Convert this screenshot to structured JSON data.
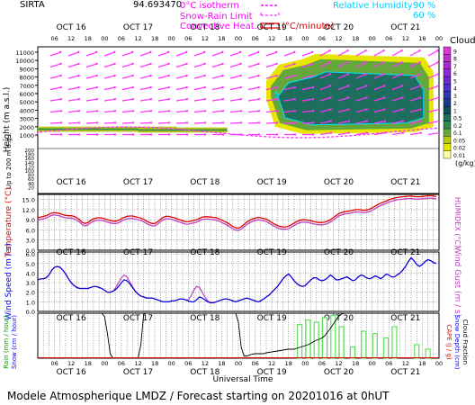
{
  "header": {
    "site": "SIRTA",
    "coord": "94.693470",
    "legend_isotherm": "0°C isotherm",
    "legend_snowrain": "Snow-Rain Limit",
    "legend_convective": "Convective Heat.",
    "legend_convective_unit": "(°C/minute)",
    "rh_label": "Relative Humidity",
    "rh_90": "90 %",
    "rh_60": "60 %"
  },
  "footer": "Modele Atmospherique LMDZ / Forecast starting on 20201016 at 0hUT",
  "time_axis": {
    "days": [
      "OCT 16",
      "OCT 17",
      "OCT 18",
      "OCT 19",
      "OCT 20",
      "OCT 21"
    ],
    "hours": [
      "06",
      "12",
      "18",
      "00"
    ],
    "xlabel": "Universal Time",
    "n_steps": 144
  },
  "chart_data": [
    {
      "type": "heatmap",
      "title": "Clouds",
      "ylabel": "Height (m a.s.l.)",
      "ylabel_low": "Up to 200 m a.g.l.",
      "yticks_upper": [
        1000,
        2000,
        3000,
        4000,
        5000,
        6000,
        7000,
        8000,
        9000,
        10000,
        11000
      ],
      "yticks_lower": [
        20,
        40,
        60,
        80,
        100,
        120,
        140,
        160,
        180,
        200
      ],
      "colorbar_label": "(g/kg)",
      "colorbar_levels": [
        "0.01",
        "0.02",
        "0.05",
        "0.1",
        "0.2",
        "0.5",
        "1",
        "2",
        "3",
        "4",
        "5",
        "6",
        "7",
        "8",
        "9"
      ],
      "colorbar_colors": [
        "#ffffa0",
        "#e6e600",
        "#b4c814",
        "#64a83c",
        "#2e8a52",
        "#1e6e5e",
        "#0e4e5a",
        "#1c3a8a",
        "#2c3ab4",
        "#4a30c8",
        "#6e2ad2",
        "#8c28d4",
        "#a828d0",
        "#c030c8",
        "#d838d8"
      ],
      "cloud_layers": [
        {
          "x": [
            0,
            5,
            10,
            15,
            20,
            25,
            30,
            35,
            40,
            45,
            50
          ],
          "base_m": 1500,
          "top_m": 1900,
          "level": "0.5"
        },
        {
          "x": [
            36,
            40,
            44,
            48,
            52,
            56,
            60,
            64,
            68
          ],
          "base_m": 1400,
          "top_m": 1800,
          "level": "0.2"
        },
        {
          "x": [
            82,
            86,
            90,
            94,
            98,
            102,
            106,
            110,
            114,
            118,
            122,
            126,
            130,
            134,
            138,
            142
          ],
          "base_m": 2000,
          "top_m": 10800,
          "level": "0.2"
        }
      ]
    },
    {
      "type": "line",
      "ylabel": "Temperature (°C)",
      "ylabel_right": "HUMIDEX (°C)",
      "yticks": [
        0.0,
        3.0,
        6.0,
        9.0,
        12.0,
        15.0
      ],
      "ylim": [
        0,
        16.5
      ],
      "series": [
        {
          "name": "Temperature",
          "color": "#e00000",
          "values": [
            9.5,
            9.8,
            10.0,
            10.2,
            10.6,
            11.0,
            11.1,
            11.0,
            10.8,
            10.5,
            10.3,
            10.2,
            10.2,
            10.0,
            9.6,
            9.0,
            8.2,
            7.9,
            8.2,
            8.8,
            9.3,
            9.5,
            9.6,
            9.5,
            9.3,
            9.0,
            8.8,
            8.6,
            8.6,
            8.8,
            9.3,
            9.7,
            10.0,
            10.1,
            10.1,
            9.9,
            9.7,
            9.5,
            9.1,
            8.6,
            8.2,
            7.9,
            7.9,
            8.4,
            9.1,
            9.7,
            10.0,
            10.0,
            9.8,
            9.6,
            9.3,
            9.0,
            8.7,
            8.4,
            8.4,
            8.6,
            8.8,
            9.0,
            9.4,
            9.8,
            9.9,
            9.9,
            9.8,
            9.7,
            9.6,
            9.3,
            8.9,
            8.5,
            8.1,
            7.6,
            7.0,
            6.6,
            6.5,
            6.9,
            7.6,
            8.3,
            8.8,
            9.2,
            9.5,
            9.7,
            9.6,
            9.4,
            9.2,
            8.7,
            8.2,
            7.7,
            7.3,
            7.0,
            6.9,
            6.9,
            7.1,
            7.5,
            8.0,
            8.5,
            8.8,
            9.0,
            9.0,
            8.9,
            8.7,
            8.5,
            8.3,
            8.2,
            8.2,
            8.3,
            8.6,
            9.0,
            9.6,
            10.2,
            10.8,
            11.1,
            11.4,
            11.5,
            11.6,
            11.8,
            12.0,
            12.0,
            11.9,
            11.8,
            11.9,
            12.1,
            12.5,
            13.0,
            13.5,
            13.9,
            14.2,
            14.5,
            14.9,
            15.2,
            15.4,
            15.6,
            15.7,
            15.8,
            15.9,
            16.0,
            16.0,
            15.9,
            15.8,
            15.8,
            15.9,
            16.0,
            16.1,
            16.1,
            16.0,
            15.9
          ]
        },
        {
          "name": "HUMIDEX",
          "color": "#c040c0",
          "values": [
            8.8,
            9.1,
            9.3,
            9.5,
            9.9,
            10.3,
            10.4,
            10.3,
            10.1,
            9.8,
            9.6,
            9.5,
            9.5,
            9.3,
            8.9,
            8.3,
            7.5,
            7.2,
            7.5,
            8.1,
            8.6,
            8.8,
            8.9,
            8.8,
            8.6,
            8.3,
            8.1,
            7.9,
            7.9,
            8.1,
            8.6,
            9.0,
            9.3,
            9.4,
            9.4,
            9.2,
            9.0,
            8.8,
            8.4,
            7.9,
            7.5,
            7.2,
            7.2,
            7.7,
            8.4,
            9.0,
            9.3,
            9.3,
            9.1,
            8.9,
            8.6,
            8.3,
            8.0,
            7.7,
            7.7,
            7.9,
            8.1,
            8.3,
            8.7,
            9.1,
            9.2,
            9.2,
            9.1,
            9.0,
            8.9,
            8.6,
            8.2,
            7.8,
            7.4,
            6.9,
            6.3,
            5.9,
            5.8,
            6.2,
            6.9,
            7.6,
            8.1,
            8.5,
            8.8,
            9.0,
            8.9,
            8.7,
            8.5,
            8.0,
            7.5,
            7.0,
            6.6,
            6.3,
            6.2,
            6.2,
            6.4,
            6.8,
            7.3,
            7.8,
            8.1,
            8.3,
            8.3,
            8.2,
            8.0,
            7.8,
            7.6,
            7.5,
            7.5,
            7.6,
            7.9,
            8.3,
            8.9,
            9.5,
            10.1,
            10.4,
            10.7,
            10.8,
            10.9,
            11.1,
            11.3,
            11.3,
            11.2,
            11.1,
            11.2,
            11.4,
            11.8,
            12.3,
            12.8,
            13.2,
            13.5,
            13.8,
            14.2,
            14.5,
            14.7,
            14.9,
            15.0,
            15.1,
            15.2,
            15.3,
            15.3,
            15.2,
            15.1,
            15.1,
            15.2,
            15.3,
            15.4,
            15.4,
            15.3,
            15.2
          ]
        }
      ]
    },
    {
      "type": "line",
      "ylabel": "Wind Speed (m / s)",
      "ylabel_right": "Wind Gust (m / s)",
      "yticks": [
        0.0,
        1.0,
        2.0,
        3.0,
        4.0,
        5.0,
        6.0
      ],
      "ylim": [
        0,
        6.2
      ],
      "series": [
        {
          "name": "Wind Speed",
          "color": "#0000dd",
          "values": [
            3.3,
            3.4,
            3.4,
            3.5,
            3.8,
            4.3,
            4.6,
            4.7,
            4.6,
            4.3,
            3.9,
            3.4,
            3.0,
            2.7,
            2.5,
            2.4,
            2.4,
            2.4,
            2.4,
            2.5,
            2.6,
            2.6,
            2.5,
            2.4,
            2.2,
            2.0,
            2.0,
            2.1,
            2.3,
            2.6,
            3.0,
            3.3,
            3.2,
            2.9,
            2.5,
            2.1,
            1.8,
            1.6,
            1.5,
            1.4,
            1.4,
            1.4,
            1.3,
            1.2,
            1.1,
            1.0,
            1.0,
            1.0,
            1.1,
            1.1,
            1.2,
            1.3,
            1.3,
            1.2,
            1.1,
            1.0,
            1.0,
            1.2,
            1.5,
            1.4,
            1.2,
            1.0,
            0.9,
            0.9,
            1.0,
            1.1,
            1.2,
            1.3,
            1.3,
            1.2,
            1.1,
            1.0,
            1.1,
            1.2,
            1.3,
            1.4,
            1.3,
            1.2,
            1.1,
            1.0,
            1.1,
            1.3,
            1.5,
            1.7,
            2.0,
            2.3,
            2.6,
            3.0,
            3.4,
            3.7,
            3.9,
            3.6,
            3.2,
            2.9,
            2.7,
            2.6,
            2.7,
            3.0,
            3.3,
            3.5,
            3.5,
            3.3,
            3.2,
            3.3,
            3.5,
            3.8,
            3.6,
            3.3,
            3.3,
            3.4,
            3.5,
            3.6,
            3.4,
            3.2,
            3.3,
            3.6,
            3.8,
            3.7,
            3.5,
            3.4,
            3.5,
            3.7,
            3.6,
            3.4,
            3.6,
            3.9,
            3.8,
            3.6,
            3.6,
            3.8,
            4.0,
            4.3,
            4.7,
            5.2,
            5.6,
            5.3,
            4.9,
            4.7,
            4.9,
            5.2,
            5.4,
            5.3,
            5.1,
            5.0
          ]
        },
        {
          "name": "Wind Gust",
          "color": "#c040c0",
          "values": [
            3.3,
            3.4,
            3.4,
            3.5,
            3.8,
            4.3,
            4.6,
            4.7,
            4.6,
            4.3,
            3.9,
            3.4,
            3.0,
            2.7,
            2.5,
            2.4,
            2.4,
            2.4,
            2.4,
            2.5,
            2.6,
            2.6,
            2.5,
            2.4,
            2.2,
            2.0,
            2.0,
            2.1,
            2.5,
            3.0,
            3.5,
            3.8,
            3.6,
            3.1,
            2.6,
            2.1,
            1.8,
            1.6,
            1.5,
            1.4,
            1.4,
            1.4,
            1.3,
            1.2,
            1.1,
            1.0,
            1.0,
            1.0,
            1.1,
            1.1,
            1.2,
            1.3,
            1.3,
            1.2,
            1.2,
            1.6,
            2.2,
            2.6,
            2.5,
            2.0,
            1.5,
            1.1,
            0.9,
            0.9,
            1.0,
            1.1,
            1.2,
            1.3,
            1.3,
            1.2,
            1.1,
            1.0,
            1.1,
            1.2,
            1.3,
            1.4,
            1.3,
            1.2,
            1.1,
            1.0,
            1.1,
            1.3,
            1.5,
            1.7,
            2.0,
            2.3,
            2.6,
            3.0,
            3.4,
            3.7,
            3.9,
            3.6,
            3.2,
            2.9,
            2.7,
            2.6,
            2.7,
            3.0,
            3.3,
            3.5,
            3.5,
            3.3,
            3.2,
            3.3,
            3.5,
            3.8,
            3.6,
            3.3,
            3.3,
            3.4,
            3.5,
            3.6,
            3.4,
            3.2,
            3.3,
            3.6,
            3.8,
            3.7,
            3.5,
            3.4,
            3.5,
            3.7,
            3.6,
            3.4,
            3.6,
            3.9,
            3.8,
            3.6,
            3.6,
            3.8,
            4.0,
            4.3,
            4.7,
            5.2,
            5.6,
            5.3,
            4.9,
            4.7,
            4.9,
            5.2,
            5.4,
            5.3,
            5.1,
            5.0
          ]
        }
      ]
    },
    {
      "type": "bar",
      "ylabel_left_1": "Rain (mm / hour)",
      "ylabel_left_2": "Snow (cm / hour)",
      "ylabel_right_1": "CAPE (J / g)",
      "ylabel_right_2": "Snow Depth (cm)",
      "ylabel_right_3": "Cloud Fraction",
      "ylim": [
        0,
        1
      ],
      "cloud_fraction": [
        1,
        1,
        1,
        1,
        1,
        1,
        1,
        1,
        1,
        1,
        1,
        1,
        1,
        1,
        1,
        1,
        1,
        1,
        1,
        1,
        1,
        1,
        1,
        1,
        0.92,
        0.55,
        0.1,
        0.0,
        0.0,
        0.0,
        0.0,
        0.0,
        0.0,
        0.0,
        0.0,
        0.0,
        0.0,
        0.3,
        0.98,
        1,
        1,
        1,
        1,
        1,
        1,
        1,
        1,
        1,
        1,
        1,
        1,
        1,
        1,
        1,
        1,
        1,
        1,
        1,
        1,
        1,
        1,
        1,
        1,
        1,
        1,
        1,
        1,
        1,
        1,
        1,
        1,
        1,
        0.8,
        0.25,
        0.05,
        0.05,
        0.07,
        0.09,
        0.1,
        0.1,
        0.1,
        0.1,
        0.12,
        0.13,
        0.14,
        0.15,
        0.16,
        0.17,
        0.18,
        0.19,
        0.2,
        0.2,
        0.2,
        0.22,
        0.24,
        0.26,
        0.28,
        0.3,
        0.33,
        0.37,
        0.4,
        0.42,
        0.45,
        0.5,
        0.58,
        0.66,
        0.75,
        0.85,
        0.93,
        0.98,
        1,
        1,
        1,
        1,
        1,
        1,
        1,
        1,
        1,
        1,
        1,
        1,
        1,
        1,
        1,
        1,
        1,
        1,
        1,
        1,
        1,
        1,
        1,
        1,
        1,
        1,
        1,
        1,
        1,
        1,
        1,
        1
      ],
      "rain_bars": [
        {
          "x": 94,
          "value": 0.75
        },
        {
          "x": 97,
          "value": 0.85
        },
        {
          "x": 100,
          "value": 0.8
        },
        {
          "x": 103,
          "value": 0.9
        },
        {
          "x": 106,
          "value": 0.95
        },
        {
          "x": 109,
          "value": 0.7
        },
        {
          "x": 113,
          "value": 0.25
        },
        {
          "x": 117,
          "value": 0.6
        },
        {
          "x": 121,
          "value": 0.55
        },
        {
          "x": 125,
          "value": 0.45
        },
        {
          "x": 128,
          "value": 0.7
        },
        {
          "x": 136,
          "value": 0.3
        },
        {
          "x": 140,
          "value": 0.2
        }
      ]
    }
  ],
  "colors": {
    "arrow": "#ff30ff",
    "cyan": "#00e0ff",
    "temp": "#e00000",
    "wind": "#0000dd",
    "rain": "#80ff80",
    "isotherm": "#ff30ff",
    "label_red": "#e00000",
    "label_blue": "#0000ff",
    "label_magenta": "#ff00ff"
  }
}
